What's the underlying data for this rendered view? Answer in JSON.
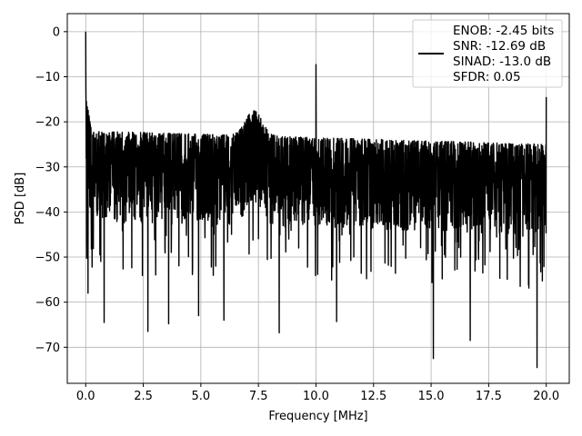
{
  "chart_data": {
    "type": "line",
    "xlabel": "Frequency [MHz]",
    "ylabel": "PSD [dB]",
    "xlim": [
      -0.8,
      21.0
    ],
    "ylim": [
      -78,
      4
    ],
    "x_ticks": [
      0.0,
      2.5,
      5.0,
      7.5,
      10.0,
      12.5,
      15.0,
      17.5,
      20.0
    ],
    "x_tick_labels": [
      "0.0",
      "2.5",
      "5.0",
      "7.5",
      "10.0",
      "12.5",
      "15.0",
      "17.5",
      "20.0"
    ],
    "y_ticks": [
      0,
      -10,
      -20,
      -30,
      -40,
      -50,
      -60,
      -70
    ],
    "y_tick_labels": [
      "0",
      "−10",
      "−20",
      "−30",
      "−40",
      "−50",
      "−60",
      "−70"
    ],
    "grid": true,
    "legend_position": "top-right",
    "legend_lines": [
      "ENOB: -2.45 bits",
      "SNR: -12.69 dB",
      "SINAD: -13.0 dB",
      "SFDR: 0.05"
    ],
    "series": [
      {
        "color": "#000000",
        "x_range": [
          0.0,
          20.0
        ],
        "dc_peak_db": 0.0,
        "tone_freq_mhz": 10.0,
        "tone_peak_db": -7.3,
        "end_spike_db": -14.5,
        "noise_band_db_low_band": [
          -42,
          -22
        ],
        "noise_band_db_high_band": [
          -45,
          -25
        ],
        "bump_near_mhz": 7.3,
        "bump_peak_db": -17.5,
        "deep_nulls": [
          {
            "x": 0.1,
            "y": -58
          },
          {
            "x": 0.8,
            "y": -64.5
          },
          {
            "x": 2.7,
            "y": -66.5
          },
          {
            "x": 3.6,
            "y": -64.8
          },
          {
            "x": 4.9,
            "y": -63
          },
          {
            "x": 6.0,
            "y": -64
          },
          {
            "x": 8.4,
            "y": -66.8
          },
          {
            "x": 10.9,
            "y": -64.3
          },
          {
            "x": 15.1,
            "y": -72.5
          },
          {
            "x": 16.7,
            "y": -68.5
          },
          {
            "x": 19.6,
            "y": -74.5
          }
        ]
      }
    ]
  }
}
